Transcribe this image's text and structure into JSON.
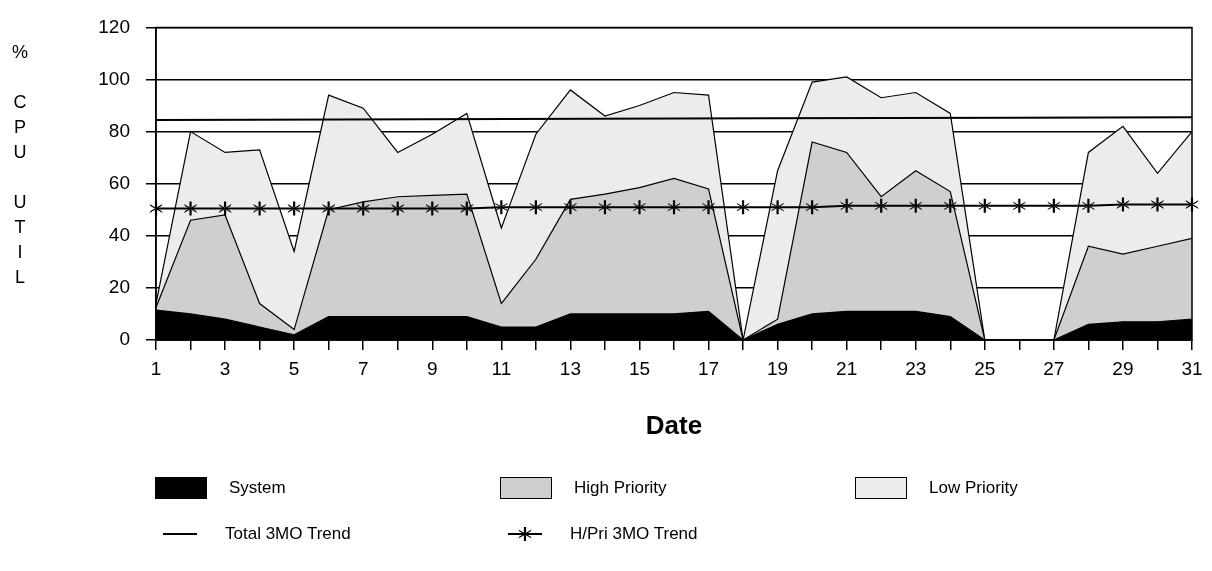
{
  "chart_data": {
    "type": "area",
    "stacked": true,
    "xlabel": "Date",
    "ylabel": "% CPU UTIL",
    "x": [
      1,
      2,
      3,
      4,
      5,
      6,
      7,
      8,
      9,
      10,
      11,
      12,
      13,
      14,
      15,
      16,
      17,
      18,
      19,
      20,
      21,
      22,
      23,
      24,
      25,
      26,
      27,
      28,
      29,
      30,
      31
    ],
    "xlim": [
      1,
      31
    ],
    "xticks": [
      1,
      {
        "value": 2,
        "label": null
      },
      3,
      {
        "value": 4,
        "label": null
      },
      5,
      {
        "value": 6,
        "label": null
      },
      7,
      {
        "value": 8,
        "label": null
      },
      9,
      {
        "value": 10,
        "label": null
      },
      11,
      {
        "value": 12,
        "label": null
      },
      13,
      {
        "value": 14,
        "label": null
      },
      15,
      {
        "value": 16,
        "label": null
      },
      17,
      {
        "value": 18,
        "label": null
      },
      19,
      {
        "value": 20,
        "label": null
      },
      21,
      {
        "value": 22,
        "label": null
      },
      23,
      {
        "value": 24,
        "label": null
      },
      25,
      {
        "value": 26,
        "label": null
      },
      27,
      {
        "value": 28,
        "label": null
      },
      29,
      {
        "value": 30,
        "label": null
      },
      31
    ],
    "ylim": [
      0,
      120
    ],
    "yticks": [
      0,
      20,
      40,
      60,
      80,
      100,
      120
    ],
    "grid": "y",
    "legend": "bottom",
    "series": [
      {
        "name": "System",
        "color": "#000000",
        "values": [
          11.5,
          10,
          8,
          5,
          2,
          9,
          9,
          9,
          9,
          9,
          5,
          5,
          10,
          10,
          10,
          10,
          11,
          0,
          6,
          10,
          11,
          11,
          11,
          9,
          0,
          0,
          0,
          6,
          7,
          7,
          8
        ]
      },
      {
        "name": "High Priority",
        "color": "#cfcfcf",
        "values": [
          1,
          36,
          40,
          9,
          2,
          41,
          44,
          46,
          46.5,
          47,
          9,
          26,
          44,
          46,
          48.5,
          52,
          47,
          0,
          2,
          66,
          61,
          44,
          54,
          48,
          0,
          0,
          0,
          30,
          26,
          29,
          31
        ]
      },
      {
        "name": "Low Priority",
        "color": "#ececec",
        "values": [
          1.5,
          34,
          24,
          59,
          30,
          44,
          36,
          17,
          23.5,
          31,
          29,
          48,
          42,
          30,
          31.5,
          33,
          36,
          0,
          57,
          23,
          29,
          38,
          30,
          30,
          0,
          0,
          0,
          36,
          49,
          28,
          41
        ]
      },
      {
        "name": "Total 3MO Trend",
        "type": "line",
        "color": "#000000",
        "marker": "none",
        "x": [
          1,
          31
        ],
        "values": [
          84.5,
          85.5
        ]
      },
      {
        "name": "H/Pri 3MO Trend",
        "type": "line",
        "color": "#000000",
        "marker": "cross",
        "values": [
          50.5,
          50.5,
          50.5,
          50.5,
          50.5,
          50.5,
          50.5,
          50.5,
          50.5,
          50.5,
          51,
          51,
          51,
          51,
          51,
          51,
          51,
          51,
          51,
          51,
          51.5,
          51.5,
          51.5,
          51.5,
          51.5,
          51.5,
          51.5,
          51.5,
          52,
          52,
          52
        ]
      }
    ]
  }
}
